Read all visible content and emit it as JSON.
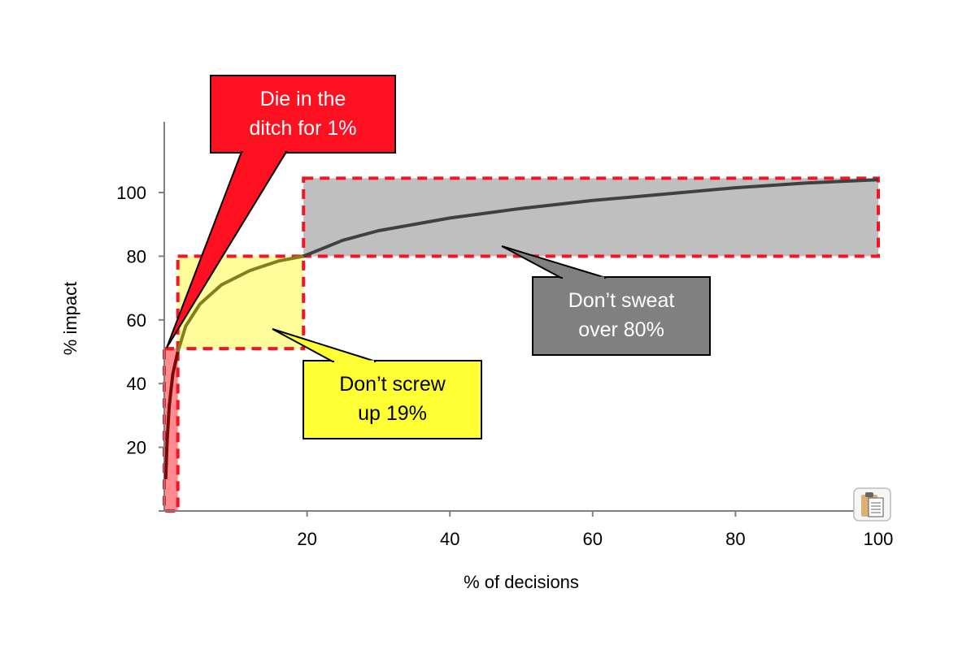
{
  "chart_data": {
    "type": "line",
    "title": "",
    "xlabel": "% of decisions",
    "ylabel": "% impact",
    "xlim": [
      0,
      100
    ],
    "ylim": [
      0,
      110
    ],
    "x_ticks": [
      20,
      40,
      60,
      80,
      100
    ],
    "y_ticks": [
      20,
      40,
      60,
      80,
      100
    ],
    "grid": false,
    "series": [
      {
        "color": "#7a0a0a",
        "points": [
          [
            0.2,
            10
          ],
          [
            0.4,
            22
          ],
          [
            0.7,
            33
          ],
          [
            1.2,
            43
          ],
          [
            1.9,
            50
          ]
        ]
      },
      {
        "color": "#808020",
        "points": [
          [
            1.9,
            50
          ],
          [
            3,
            58
          ],
          [
            5,
            65
          ],
          [
            8,
            71
          ],
          [
            12,
            75.5
          ],
          [
            16,
            78.5
          ],
          [
            19.5,
            80
          ]
        ]
      },
      {
        "color": "#404040",
        "points": [
          [
            19.5,
            80
          ],
          [
            25,
            85
          ],
          [
            30,
            88
          ],
          [
            40,
            92
          ],
          [
            50,
            95
          ],
          [
            60,
            97.5
          ],
          [
            70,
            99.5
          ],
          [
            80,
            101.5
          ],
          [
            90,
            103
          ],
          [
            100,
            104
          ]
        ]
      }
    ],
    "regions": [
      {
        "x": [
          0,
          1.9
        ],
        "y": [
          0,
          51
        ],
        "fill": "#ff8a90",
        "border": "#ff1020"
      },
      {
        "x": [
          1.9,
          19.5
        ],
        "y": [
          51,
          80
        ],
        "fill": "#fffc9a",
        "border": "#ff1020"
      },
      {
        "x": [
          19.5,
          100
        ],
        "y": [
          80,
          104.5
        ],
        "fill": "#bfbfbf",
        "border": "#ff1020"
      }
    ],
    "annotations": [
      {
        "lines": [
          "Die in the",
          "ditch for 1%"
        ],
        "fill": "#ff1020",
        "text_color": "#ffffff"
      },
      {
        "lines": [
          "Don’t screw",
          "up 19%"
        ],
        "fill": "#ffff33",
        "text_color": "#000000"
      },
      {
        "lines": [
          "Don’t sweat",
          "over 80%"
        ],
        "fill": "#808080",
        "text_color": "#ffffff"
      }
    ]
  },
  "icons": {
    "paste_options": "clipboard-icon"
  }
}
